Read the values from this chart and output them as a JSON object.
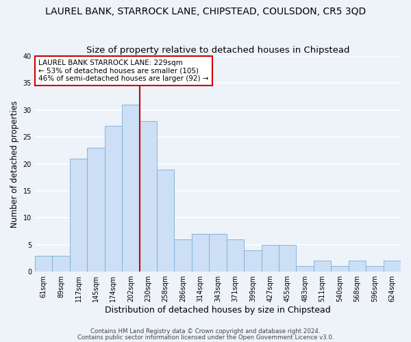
{
  "title": "LAUREL BANK, STARROCK LANE, CHIPSTEAD, COULSDON, CR5 3QD",
  "subtitle": "Size of property relative to detached houses in Chipstead",
  "xlabel": "Distribution of detached houses by size in Chipstead",
  "ylabel": "Number of detached properties",
  "categories": [
    "61sqm",
    "89sqm",
    "117sqm",
    "145sqm",
    "174sqm",
    "202sqm",
    "230sqm",
    "258sqm",
    "286sqm",
    "314sqm",
    "343sqm",
    "371sqm",
    "399sqm",
    "427sqm",
    "455sqm",
    "483sqm",
    "511sqm",
    "540sqm",
    "568sqm",
    "596sqm",
    "624sqm"
  ],
  "values": [
    3,
    3,
    21,
    23,
    27,
    31,
    28,
    19,
    6,
    7,
    7,
    6,
    4,
    5,
    5,
    1,
    2,
    1,
    2,
    1,
    2
  ],
  "bar_color": "#ccdff5",
  "bar_edge_color": "#7aadd4",
  "annotation_text": "LAUREL BANK STARROCK LANE: 229sqm\n← 53% of detached houses are smaller (105)\n46% of semi-detached houses are larger (92) →",
  "annotation_box_color": "#ffffff",
  "annotation_box_edge_color": "#cc0000",
  "vline_color": "#cc0000",
  "vline_x": 6.0,
  "ylim": [
    0,
    40
  ],
  "fig_bg": "#eef2f9",
  "plot_bg": "#eef2f9",
  "grid_color": "#ffffff",
  "footer1": "Contains HM Land Registry data © Crown copyright and database right 2024.",
  "footer2": "Contains public sector information licensed under the Open Government Licence v3.0.",
  "title_fontsize": 10,
  "subtitle_fontsize": 9.5,
  "xlabel_fontsize": 9,
  "ylabel_fontsize": 8.5,
  "tick_fontsize": 7,
  "annot_fontsize": 7.5,
  "footer_fontsize": 6.2
}
